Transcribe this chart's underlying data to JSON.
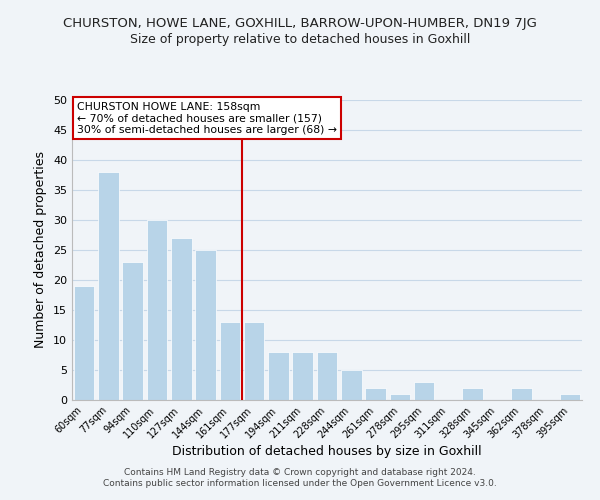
{
  "title": "CHURSTON, HOWE LANE, GOXHILL, BARROW-UPON-HUMBER, DN19 7JG",
  "subtitle": "Size of property relative to detached houses in Goxhill",
  "xlabel": "Distribution of detached houses by size in Goxhill",
  "ylabel": "Number of detached properties",
  "bar_labels": [
    "60sqm",
    "77sqm",
    "94sqm",
    "110sqm",
    "127sqm",
    "144sqm",
    "161sqm",
    "177sqm",
    "194sqm",
    "211sqm",
    "228sqm",
    "244sqm",
    "261sqm",
    "278sqm",
    "295sqm",
    "311sqm",
    "328sqm",
    "345sqm",
    "362sqm",
    "378sqm",
    "395sqm"
  ],
  "bar_values": [
    19,
    38,
    23,
    30,
    27,
    25,
    13,
    13,
    8,
    8,
    8,
    5,
    2,
    1,
    3,
    0,
    2,
    0,
    2,
    0,
    1
  ],
  "bar_color": "#b8d4e8",
  "bar_edge_color": "#ffffff",
  "grid_color": "#c8d8e8",
  "property_line_x": 6.5,
  "annotation_title": "CHURSTON HOWE LANE: 158sqm",
  "annotation_line1": "← 70% of detached houses are smaller (157)",
  "annotation_line2": "30% of semi-detached houses are larger (68) →",
  "annotation_box_color": "#ffffff",
  "annotation_box_edge": "#cc0000",
  "property_line_color": "#cc0000",
  "ylim": [
    0,
    50
  ],
  "footer1": "Contains HM Land Registry data © Crown copyright and database right 2024.",
  "footer2": "Contains public sector information licensed under the Open Government Licence v3.0.",
  "background_color": "#f0f4f8",
  "title_fontsize": 9.5,
  "subtitle_fontsize": 9
}
